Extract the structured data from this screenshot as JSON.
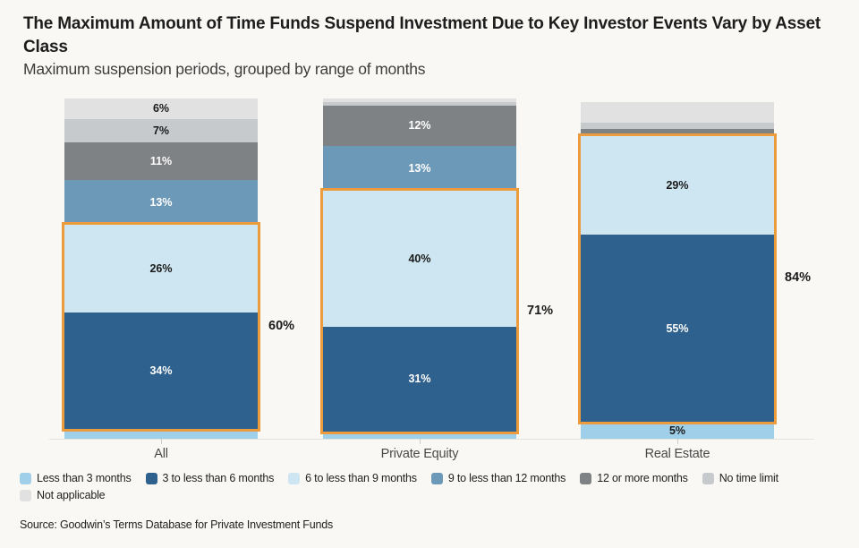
{
  "chart_data": {
    "type": "bar",
    "stacked": true,
    "title": "The Maximum Amount of Time Funds Suspend Investment Due to Key Investor Events Vary by Asset Class",
    "subtitle": "Maximum suspension periods, grouped by range of months",
    "unit": "percent",
    "ylim": [
      0,
      100
    ],
    "grid": false,
    "legend_position": "bottom",
    "categories": [
      "All",
      "Private Equity",
      "Real Estate"
    ],
    "series": [
      {
        "name": "Less than 3 months",
        "color": "#a0cfe9",
        "label_color": "#1a1a1a",
        "values": [
          3,
          2,
          5
        ]
      },
      {
        "name": "3 to less than 6 months",
        "color": "#2f618e",
        "label_color": "#ffffff",
        "values": [
          34,
          31,
          55
        ]
      },
      {
        "name": "6 to less than 9 months",
        "color": "#cee6f2",
        "label_color": "#1a1a1a",
        "values": [
          26,
          40,
          29
        ]
      },
      {
        "name": "9 to less than 12 months",
        "color": "#6d99b9",
        "label_color": "#ffffff",
        "values": [
          13,
          13,
          0
        ]
      },
      {
        "name": "12 or more months",
        "color": "#7e8285",
        "label_color": "#ffffff",
        "values": [
          11,
          12,
          2
        ]
      },
      {
        "name": "No time limit",
        "color": "#c6cacd",
        "label_color": "#1a1a1a",
        "values": [
          7,
          1,
          2
        ]
      },
      {
        "name": "Not applicable",
        "color": "#e1e1e1",
        "label_color": "#1a1a1a",
        "values": [
          6,
          1,
          6
        ]
      }
    ],
    "segment_labels": {
      "All": [
        "",
        "34%",
        "26%",
        "13%",
        "11%",
        "7%",
        "6%"
      ],
      "Private Equity": [
        "",
        "31%",
        "40%",
        "13%",
        "12%",
        "",
        ""
      ],
      "Real Estate": [
        "5%",
        "55%",
        "29%",
        "",
        "",
        "",
        ""
      ]
    },
    "highlight": {
      "color": "#ec9c3d",
      "series_spanned": [
        "3 to less than 6 months",
        "6 to less than 9 months"
      ],
      "totals": [
        "60%",
        "71%",
        "84%"
      ]
    },
    "legend_rows": [
      [
        0,
        1,
        2,
        3,
        4,
        5
      ],
      [
        6
      ]
    ]
  },
  "source": "Source: Goodwin’s Terms Database for Private Investment Funds"
}
